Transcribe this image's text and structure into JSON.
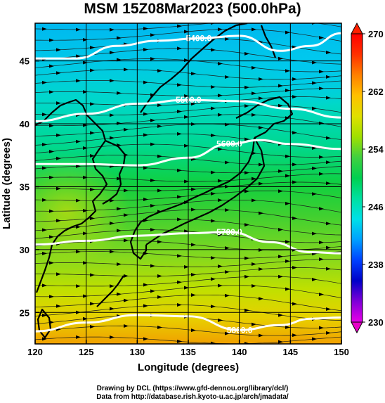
{
  "title": "MSM 15Z08Mar2023 (500.0hPa)",
  "map": {
    "lon_range": [
      120,
      150
    ],
    "lat_range": [
      22.5,
      48
    ],
    "x_ticks": [
      120,
      125,
      130,
      135,
      140,
      145,
      150
    ],
    "y_ticks": [
      25,
      30,
      35,
      40,
      45
    ],
    "xlabel": "Longitude (degrees)",
    "ylabel": "Latitude  (degrees)",
    "gridlines": true,
    "variable_field": "temperature (colour shading), wind streamlines with arrows",
    "height_contours": [
      {
        "label": "5400.0",
        "value": 5400,
        "lat_at_lon": [
          [
            120,
            45.2
          ],
          [
            124,
            45.2
          ],
          [
            128,
            46.2
          ],
          [
            132,
            46.6
          ],
          [
            136,
            46.8
          ],
          [
            140,
            47.0
          ],
          [
            144,
            45.8
          ],
          [
            147,
            46.2
          ],
          [
            150,
            47.2
          ]
        ]
      },
      {
        "label": "5500.0",
        "value": 5500,
        "lat_at_lon": [
          [
            120,
            40.2
          ],
          [
            125,
            40.8
          ],
          [
            130,
            41.6
          ],
          [
            135,
            41.9
          ],
          [
            140,
            41.8
          ],
          [
            145,
            41.2
          ],
          [
            150,
            40.5
          ]
        ]
      },
      {
        "label": "5600.0",
        "value": 5600,
        "lat_at_lon": [
          [
            120,
            36.8
          ],
          [
            125,
            36.8
          ],
          [
            130,
            36.7
          ],
          [
            135,
            37.3
          ],
          [
            139,
            38.4
          ],
          [
            142,
            38.7
          ],
          [
            145,
            38.4
          ],
          [
            150,
            38.0
          ]
        ]
      },
      {
        "label": "5700.0",
        "value": 5700,
        "lat_at_lon": [
          [
            120,
            30.4
          ],
          [
            125,
            30.7
          ],
          [
            130,
            31.1
          ],
          [
            135,
            31.3
          ],
          [
            139,
            31.4
          ],
          [
            143,
            30.6
          ],
          [
            147,
            29.8
          ],
          [
            150,
            29.7
          ]
        ]
      },
      {
        "label": "5800.0",
        "value": 5800,
        "lat_at_lon": [
          [
            120,
            23.5
          ],
          [
            125,
            24.2
          ],
          [
            130,
            24.8
          ],
          [
            135,
            24.7
          ],
          [
            140,
            23.6
          ],
          [
            144,
            24.0
          ],
          [
            147,
            24.5
          ],
          [
            150,
            24.6
          ]
        ]
      }
    ]
  },
  "colorbar": {
    "min": 230,
    "max": 270,
    "tick_values": [
      230,
      238,
      246,
      254,
      262,
      270
    ],
    "tick_labels": [
      "230",
      "238",
      "246",
      "254",
      "262",
      "270"
    ],
    "colors": [
      "#e800e8",
      "#8000d8",
      "#0000c8",
      "#0040ff",
      "#00a0ff",
      "#00e0e8",
      "#00e0a0",
      "#00d050",
      "#40d040",
      "#a0e000",
      "#e0e000",
      "#ffc000",
      "#ff8000",
      "#ff3000",
      "#ff0000"
    ]
  },
  "credits": {
    "line1": "Drawing by DCL (https://www.gfd-dennou.org/library/dcl/)",
    "line2": "Data from http://database.rish.kyoto-u.ac.jp/arch/jmadata/"
  }
}
